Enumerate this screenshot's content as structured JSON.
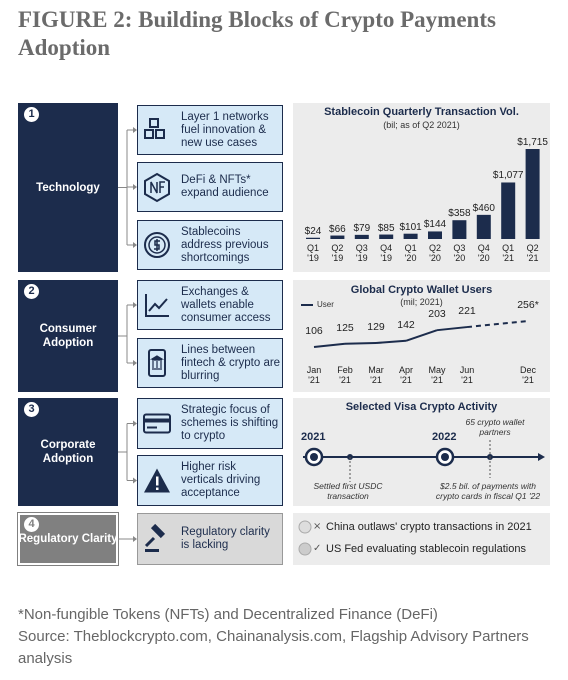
{
  "header": {
    "title": "FIGURE 2: Building Blocks of Crypto Payments Adoption"
  },
  "sections": [
    {
      "number": "1",
      "label": "Technology",
      "items": [
        "Layer 1 networks fuel innovation & new use cases",
        "DeFi & NFTs* expand audience",
        "Stablecoins address previous shortcomings"
      ]
    },
    {
      "number": "2",
      "label": "Consumer Adoption",
      "items": [
        "Exchanges & wallets enable consumer access",
        "Lines between fintech & crypto are blurring"
      ]
    },
    {
      "number": "3",
      "label": "Corporate Adoption",
      "items": [
        "Strategic focus of schemes is shifting to crypto",
        "Higher risk verticals driving acceptance"
      ]
    },
    {
      "number": "4",
      "label": "Regulatory Clarity",
      "items": [
        "Regulatory clarity is lacking"
      ]
    }
  ],
  "chart_data": [
    {
      "type": "bar",
      "title": "Stablecoin Quarterly Transaction Vol.",
      "subtitle": "(bil; as of Q2 2021)",
      "categories": [
        "Q1 '19",
        "Q2 '19",
        "Q3 '19",
        "Q4 '19",
        "Q1 '20",
        "Q2 '20",
        "Q3 '20",
        "Q4 '20",
        "Q1 '21",
        "Q2 '21"
      ],
      "values": [
        24,
        66,
        79,
        85,
        101,
        144,
        358,
        460,
        1077,
        1715
      ],
      "value_labels": [
        "$24",
        "$66",
        "$79",
        "$85",
        "$101",
        "$144",
        "$358",
        "$460",
        "$1,077",
        "$1,715"
      ],
      "color": "#1c2c4c"
    },
    {
      "type": "line",
      "title": "Global Crypto Wallet Users",
      "subtitle": "(mil; 2021)",
      "categories": [
        "Jan '21",
        "Feb '21",
        "Mar '21",
        "Apr '21",
        "May '21",
        "Jun '21",
        "Dec '21"
      ],
      "series": [
        {
          "name": "User",
          "color": "#1c2c4c",
          "values": [
            106,
            125,
            129,
            142,
            203,
            221,
            256
          ],
          "value_labels": [
            "106",
            "125",
            "129",
            "142",
            "203",
            "221",
            "256*"
          ]
        }
      ]
    }
  ],
  "visa_timeline": {
    "title": "Selected Visa Crypto Activity",
    "top_note": "65 crypto wallet partners",
    "events": [
      {
        "year": "2021",
        "note": "Settled first USDC transaction"
      },
      {
        "year": "2022",
        "note": "$2.5 bil. of payments with crypto cards in fiscal Q1 '22"
      }
    ]
  },
  "regulation": {
    "items": [
      {
        "marker": "×",
        "text": "China outlaws' crypto transactions in 2021"
      },
      {
        "marker": "✓",
        "text": "US Fed evaluating stablecoin regulations"
      }
    ]
  },
  "footnote": {
    "note": "*Non-fungible Tokens (NFTs) and Decentralized Finance (DeFi)",
    "source": "Source: Theblockcrypto.com, Chainanalysis.com, Flagship Advisory Partners analysis"
  }
}
